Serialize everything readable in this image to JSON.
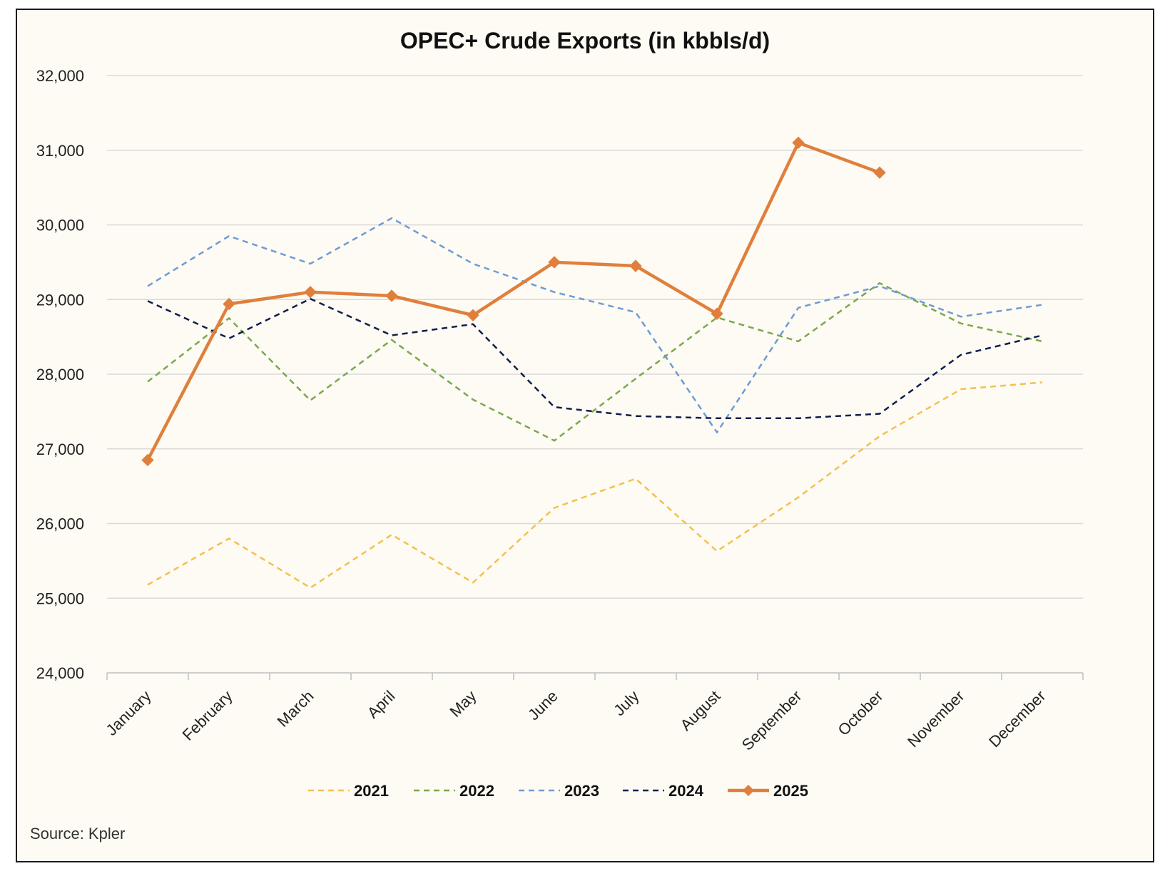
{
  "chart_data": {
    "type": "line",
    "title": "OPEC+ Crude Exports (in kbbls/d)",
    "xlabel": "",
    "ylabel": "",
    "categories": [
      "January",
      "February",
      "March",
      "April",
      "May",
      "June",
      "July",
      "August",
      "September",
      "October",
      "November",
      "December"
    ],
    "ylim": [
      24000,
      32000
    ],
    "yticks": [
      24000,
      25000,
      26000,
      27000,
      28000,
      29000,
      30000,
      31000,
      32000
    ],
    "ytick_labels": [
      "24,000",
      "25,000",
      "26,000",
      "27,000",
      "28,000",
      "29,000",
      "30,000",
      "31,000",
      "32,000"
    ],
    "grid": "horizontal",
    "legend_position": "bottom",
    "series": [
      {
        "name": "2021",
        "color": "#f2c14e",
        "style": "dashed",
        "markers": false,
        "values": [
          25180,
          25800,
          25140,
          25850,
          25210,
          26210,
          26600,
          25630,
          26350,
          27170,
          27800,
          27890
        ]
      },
      {
        "name": "2022",
        "color": "#7aa84f",
        "style": "dashed",
        "markers": false,
        "values": [
          27900,
          28750,
          27650,
          28460,
          27660,
          27110,
          27940,
          28760,
          28440,
          29220,
          28680,
          28440
        ]
      },
      {
        "name": "2023",
        "color": "#6f9bd4",
        "style": "dashed",
        "markers": false,
        "values": [
          29180,
          29850,
          29480,
          30090,
          29480,
          29100,
          28830,
          27220,
          28890,
          29180,
          28770,
          28930
        ]
      },
      {
        "name": "2024",
        "color": "#0e1f4d",
        "style": "dashed",
        "markers": false,
        "values": [
          28980,
          28480,
          29010,
          28520,
          28670,
          27560,
          27440,
          27410,
          27410,
          27470,
          28260,
          28520
        ]
      },
      {
        "name": "2025",
        "color": "#e07f3c",
        "style": "solid",
        "markers": true,
        "values": [
          26850,
          28940,
          29100,
          29050,
          28790,
          29500,
          29450,
          28810,
          31100,
          30700,
          null,
          null
        ]
      }
    ],
    "source": "Source: Kpler"
  },
  "colors": {
    "background": "#fdfbf3",
    "grid": "#d9d9d9",
    "axis": "#bfbfbf"
  }
}
